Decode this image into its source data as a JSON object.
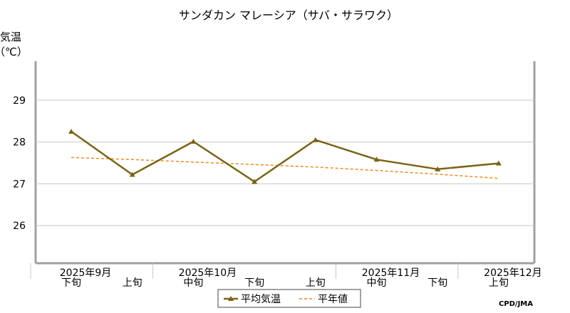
{
  "chart_data": {
    "type": "line",
    "title": "サンダカン マレーシア（サバ・サラワク）",
    "ylabel_line1": "気温",
    "ylabel_line2": "（℃）",
    "ylim": [
      25.1,
      29.9
    ],
    "yticks": [
      26,
      27,
      28,
      29
    ],
    "grid": true,
    "categories": [
      "下旬",
      "上旬",
      "中旬",
      "下旬",
      "上旬",
      "中旬",
      "下旬",
      "上旬"
    ],
    "month_labels": [
      {
        "label": "2025年9月",
        "at": 0
      },
      {
        "label": "2025年10月",
        "at": 2
      },
      {
        "label": "2025年11月",
        "at": 5
      },
      {
        "label": "2025年12月",
        "at": 7
      }
    ],
    "series": [
      {
        "name": "平均気温",
        "color": "#7a6414",
        "style": "solid",
        "marker": "triangle",
        "values": [
          28.25,
          27.22,
          28.01,
          27.05,
          28.05,
          27.58,
          27.35,
          27.49
        ]
      },
      {
        "name": "平年値",
        "color": "#f08a1c",
        "style": "dashed",
        "marker": "none",
        "values": [
          27.63,
          27.58,
          27.52,
          27.46,
          27.4,
          27.32,
          27.23,
          27.13
        ]
      }
    ],
    "legend_position": "bottom",
    "credit": "CPD/JMA"
  }
}
